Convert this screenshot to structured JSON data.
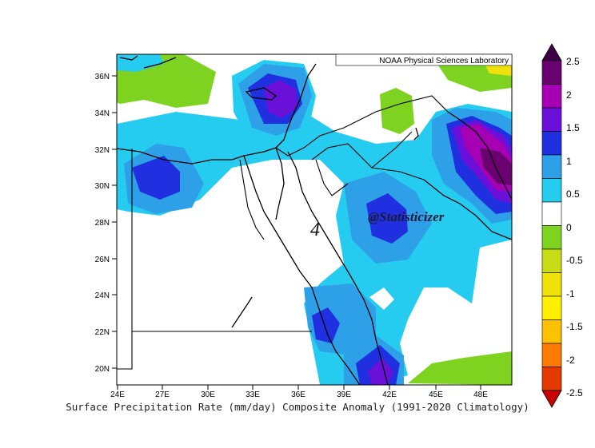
{
  "credit": "NOAA Physical Sciences Laboratory",
  "watermark": "@Statisticizer",
  "panel_label": "4",
  "caption": "Surface Precipitation Rate (mm/day) Composite Anomaly (1991-2020 Climatology)",
  "lat_ticks": [
    "36N",
    "34N",
    "32N",
    "30N",
    "28N",
    "26N",
    "24N",
    "22N",
    "20N"
  ],
  "lon_ticks": [
    "24E",
    "27E",
    "30E",
    "33E",
    "36E",
    "39E",
    "42E",
    "45E",
    "48E"
  ],
  "colorbar": {
    "tick_labels": [
      "2.5",
      "2",
      "1.5",
      "1",
      "0.5",
      "0",
      "-0.5",
      "-1",
      "-1.5",
      "-2",
      "-2.5"
    ],
    "bins": [
      {
        "range": "2 to 2.5",
        "color": "#6a006f"
      },
      {
        "range": "1.5 to 2",
        "color": "#a500b4"
      },
      {
        "range": "1 to 1.5",
        "color": "#6a10d8"
      },
      {
        "range": "0.5 to 1",
        "color": "#2030e0"
      },
      {
        "range": "0.25 to 0.5",
        "color": "#2da0e8"
      },
      {
        "range": "0 to 0.25",
        "color": "#26ccef"
      },
      {
        "range": "neutral",
        "color": "#ffffff"
      },
      {
        "range": "-0.5 to 0",
        "color": "#7ed321"
      },
      {
        "range": "-0.75 to -0.5",
        "color": "#c8dc16"
      },
      {
        "range": "-1 to -0.75",
        "color": "#f0e10a"
      },
      {
        "range": "-1.5 to -1",
        "color": "#fff000"
      },
      {
        "range": "-2 to -1.5",
        "color": "#ffc000"
      },
      {
        "range": "-2.5 to -2",
        "color": "#ff7a00"
      },
      {
        "range": "< -2.5",
        "color": "#e23a00"
      }
    ],
    "top_arrow_color": "#3d0044",
    "bottom_arrow_color": "#c80000"
  }
}
